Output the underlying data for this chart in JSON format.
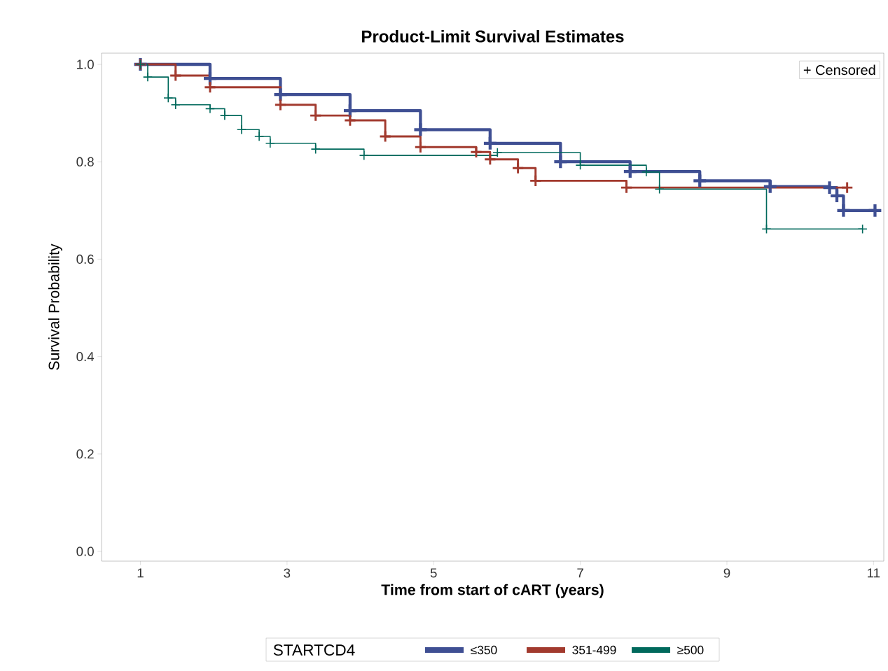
{
  "chart_data": {
    "type": "step",
    "title": "Product-Limit Survival Estimates",
    "xlabel": "Time from start of cART (years)",
    "ylabel": "Survival Probability",
    "legend_title": "STARTCD4",
    "legend": "bottom",
    "marker": "cross",
    "grid": false,
    "xlim": [
      0.47,
      11.14
    ],
    "ylim": [
      -0.02,
      1.023
    ],
    "xticks": [
      1,
      3,
      5,
      7,
      9,
      11
    ],
    "yticks": [
      {
        "value": 0,
        "label": "0.0"
      },
      0.2,
      0.4,
      0.6,
      0.8,
      {
        "value": 1,
        "label": "1.0"
      }
    ],
    "annotations": [
      "+ Censored"
    ],
    "series": [
      {
        "name": "≤350",
        "color": "#3f4f93",
        "x": [
          1,
          1.95,
          2.91,
          3.86,
          4.82,
          5.77,
          6.73,
          7.68,
          8.63,
          9.59,
          10.4,
          10.5,
          10.59,
          11.02
        ],
        "values": [
          1.0,
          0.971,
          0.938,
          0.905,
          0.866,
          0.838,
          0.8,
          0.78,
          0.761,
          0.749,
          0.747,
          0.73,
          0.7,
          0.7
        ]
      },
      {
        "name": "351-499",
        "color": "#a23a2e",
        "x": [
          1,
          1.48,
          1.95,
          2.91,
          3.39,
          3.86,
          4.34,
          4.82,
          5.58,
          5.77,
          6.15,
          6.39,
          7.63,
          10.64
        ],
        "values": [
          1.0,
          0.977,
          0.953,
          0.917,
          0.895,
          0.885,
          0.852,
          0.83,
          0.82,
          0.805,
          0.787,
          0.761,
          0.747,
          0.747
        ]
      },
      {
        "name": "≥500",
        "color": "#00695c",
        "x": [
          1,
          1.1,
          1.38,
          1.48,
          1.95,
          2.15,
          2.38,
          2.62,
          2.77,
          3.39,
          4.05,
          5.87,
          7.0,
          7.9,
          8.08,
          9.54,
          10.85
        ],
        "values": [
          1.0,
          0.974,
          0.931,
          0.917,
          0.909,
          0.895,
          0.866,
          0.852,
          0.838,
          0.826,
          0.813,
          0.819,
          0.793,
          0.779,
          0.744,
          0.662,
          0.662
        ]
      }
    ]
  }
}
